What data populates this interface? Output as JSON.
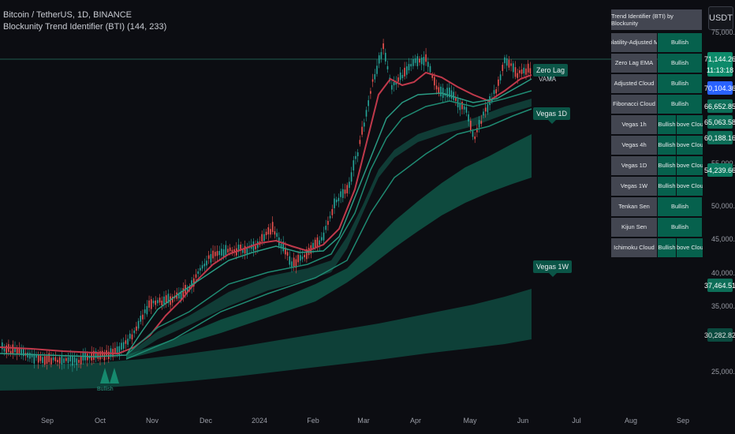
{
  "legend": {
    "symbol_line": "Bitcoin / TetherUS, 1D, BINANCE",
    "indicator_line": "Blockunity Trend Identifier (BTI) (144, 233)"
  },
  "currency_button": "USDT",
  "table": {
    "title": "Trend Identifier (BTI) by Blockunity",
    "rows2": [
      {
        "name": "Volatility-Adjusted MA",
        "value": "Bullish"
      },
      {
        "name": "Zero Lag EMA",
        "value": "Bullish"
      },
      {
        "name": "Adjusted Cloud",
        "value": "Bullish"
      },
      {
        "name": "Fibonacci Cloud",
        "value": "Bullish"
      }
    ],
    "rows3": [
      {
        "name": "Vegas 1h",
        "value": "Bullish",
        "position": "Above Cloud"
      },
      {
        "name": "Vegas 4h",
        "value": "Bullish",
        "position": "Above Cloud"
      },
      {
        "name": "Vegas 1D",
        "value": "Bullish",
        "position": "Above Cloud"
      },
      {
        "name": "Vegas 1W",
        "value": "Bullish",
        "position": "Above Cloud"
      }
    ],
    "rows2b": [
      {
        "name": "Tenkan Sen",
        "value": "Bullish"
      },
      {
        "name": "Kijun Sen",
        "value": "Bullish"
      }
    ],
    "rows3b": [
      {
        "name": "Ichimoku Cloud",
        "value": "Bullish",
        "position": "Above Cloud"
      }
    ]
  },
  "chart_labels": {
    "zero_lag": "Zero Lag",
    "vama": "VAMA",
    "vegas_1d": "Vegas 1D",
    "vegas_1w": "Vegas 1W",
    "bottom_marker": "Bullish"
  },
  "price_axis": {
    "labels": [
      {
        "text": "50,000.00"
      },
      {
        "text": "45,000.00"
      },
      {
        "text": "40,000.00"
      },
      {
        "text": "35,000.00"
      },
      {
        "text": "25,000.00"
      }
    ],
    "partial_top": "75,000.00",
    "partial_mid": "55,000.00",
    "tags": [
      {
        "text": "71,144.26",
        "color": "#0d8a6a",
        "fg": "#ffffff"
      },
      {
        "text": "11:13:18",
        "color": "#0d8a6a",
        "fg": "#ffffff"
      },
      {
        "text": "70,104.36",
        "color": "#2962ff",
        "fg": "#ffffff"
      },
      {
        "text": "66,652.85",
        "color": "#0d6e58",
        "fg": "#ffffff"
      },
      {
        "text": "65,063.58",
        "color": "#0d6e58",
        "fg": "#ffffff"
      },
      {
        "text": "60,188.16",
        "color": "#0d6e58",
        "fg": "#ffffff"
      },
      {
        "text": "54,239.66",
        "color": "#0b7a60",
        "fg": "#ffffff"
      },
      {
        "text": "37,464.51",
        "color": "#0d6e58",
        "fg": "#ffffff"
      },
      {
        "text": "30,282.82",
        "color": "#0b4a3f",
        "fg": "#e0e0e0"
      }
    ]
  },
  "time_axis": [
    "Sep",
    "Oct",
    "Nov",
    "Dec",
    "2024",
    "Feb",
    "Mar",
    "Apr",
    "May",
    "Jun",
    "Jul",
    "Aug",
    "Sep"
  ]
}
